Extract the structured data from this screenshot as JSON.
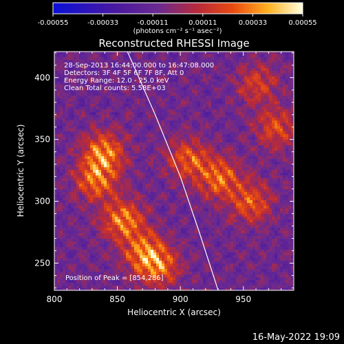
{
  "chart_data": {
    "type": "heatmap",
    "title": "Reconstructed RHESSI Image",
    "xlabel": "Heliocentric X (arcsec)",
    "ylabel": "Heliocentric Y (arcsec)",
    "xlim": [
      800,
      990
    ],
    "ylim": [
      228,
      421
    ],
    "x_ticks": [
      "800",
      "850",
      "900",
      "950"
    ],
    "x_tick_values": [
      800,
      850,
      900,
      950
    ],
    "y_ticks": [
      "250",
      "300",
      "350",
      "400"
    ],
    "y_tick_values": [
      250,
      300,
      350,
      400
    ],
    "colorbar": {
      "min": -0.00055,
      "max": 0.00055,
      "tick_labels": [
        "-0.00055",
        "-0.00033",
        "-0.00011",
        "0.00011",
        "0.00033",
        "0.00055"
      ],
      "tick_values": [
        -0.00055,
        -0.00033,
        -0.00011,
        0.00011,
        0.00033,
        0.00055
      ],
      "units": "(photons cm⁻² s⁻¹ asec⁻²)",
      "colors": [
        "#0a10d8",
        "#4a18a0",
        "#6a2a90",
        "#b82a3a",
        "#e84a10",
        "#ffb020",
        "#ffffe0"
      ]
    },
    "info_lines": [
      "28-Sep-2013 16:44:00.000 to 16:47:08.000",
      "Detectors: 3F 4F 5F 6F 7F 8F, Att 0",
      "Energy Range: 12.0 - 25.0 keV",
      "Clean    Total counts: 5.58E+03"
    ],
    "peak_label": "Position of Peak = [854,286]",
    "peak": [
      854,
      286
    ],
    "limb_points": [
      [
        858,
        421
      ],
      [
        880,
        370
      ],
      [
        900,
        320
      ],
      [
        915,
        275
      ],
      [
        930,
        228
      ]
    ],
    "bright_regions": [
      {
        "x": 838,
        "y": 340,
        "w": 1.0
      },
      {
        "x": 832,
        "y": 318,
        "w": 0.9
      },
      {
        "x": 854,
        "y": 286,
        "w": 1.0
      },
      {
        "x": 870,
        "y": 260,
        "w": 0.9
      },
      {
        "x": 882,
        "y": 248,
        "w": 0.8
      },
      {
        "x": 905,
        "y": 335,
        "w": 0.8
      },
      {
        "x": 930,
        "y": 320,
        "w": 0.9
      },
      {
        "x": 955,
        "y": 300,
        "w": 0.8
      },
      {
        "x": 975,
        "y": 360,
        "w": 0.7
      },
      {
        "x": 960,
        "y": 395,
        "w": 0.6
      }
    ]
  },
  "footer": {
    "date": "16-May-2022 19:09"
  }
}
